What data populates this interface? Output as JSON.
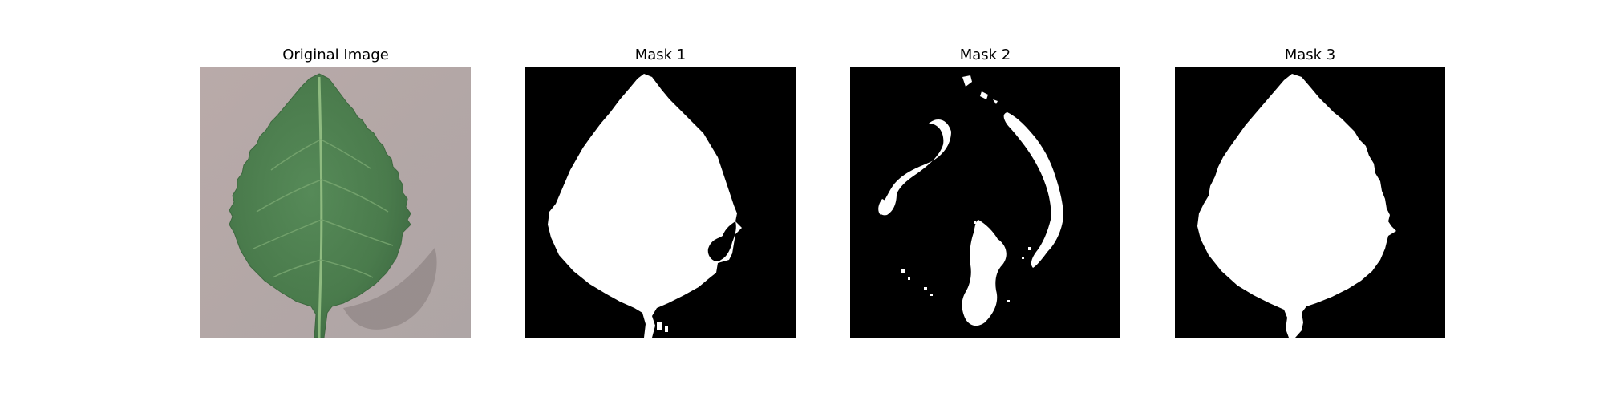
{
  "figure": {
    "panels": [
      {
        "title": "Original Image"
      },
      {
        "title": "Mask 1"
      },
      {
        "title": "Mask 2"
      },
      {
        "title": "Mask 3"
      }
    ]
  },
  "colors": {
    "background": "#ffffff",
    "mask_background": "#000000",
    "mask_foreground": "#ffffff",
    "leaf": "#4c7d4c",
    "surface": "#b7aaa8"
  }
}
